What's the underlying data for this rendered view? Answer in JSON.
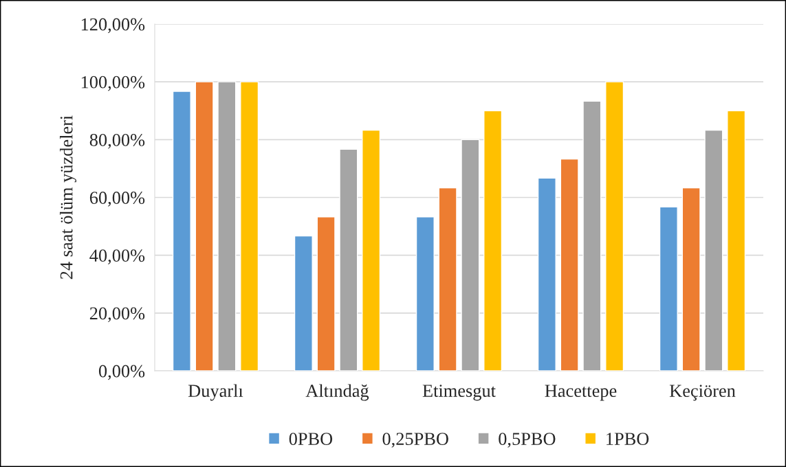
{
  "chart_data": {
    "type": "bar",
    "ylabel": "24 saat ölüm yüzdeleri",
    "categories": [
      "Duyarlı",
      "Altındağ",
      "Etimesgut",
      "Hacettepe",
      "Keçiören"
    ],
    "series": [
      {
        "name": "0PBO",
        "color": "#5b9bd5",
        "values": [
          96.7,
          46.7,
          53.3,
          66.7,
          56.7
        ]
      },
      {
        "name": "0,25PBO",
        "color": "#ed7d31",
        "values": [
          100,
          53.3,
          63.3,
          73.3,
          63.3
        ]
      },
      {
        "name": "0,5PBO",
        "color": "#a5a5a5",
        "values": [
          100,
          76.7,
          80,
          93.3,
          83.3
        ]
      },
      {
        "name": "1PBO",
        "color": "#ffc000",
        "values": [
          100,
          83.3,
          90,
          100,
          90
        ]
      }
    ],
    "ylim": [
      0,
      120
    ],
    "yticks": [
      {
        "value": 0,
        "label": "0,00%"
      },
      {
        "value": 20,
        "label": "20,00%"
      },
      {
        "value": 40,
        "label": "40,00%"
      },
      {
        "value": 60,
        "label": "60,00%"
      },
      {
        "value": 80,
        "label": "80,00%"
      },
      {
        "value": 100,
        "label": "100,00%"
      },
      {
        "value": 120,
        "label": "120,00%"
      }
    ],
    "grid": "y",
    "legend": "bottom"
  }
}
